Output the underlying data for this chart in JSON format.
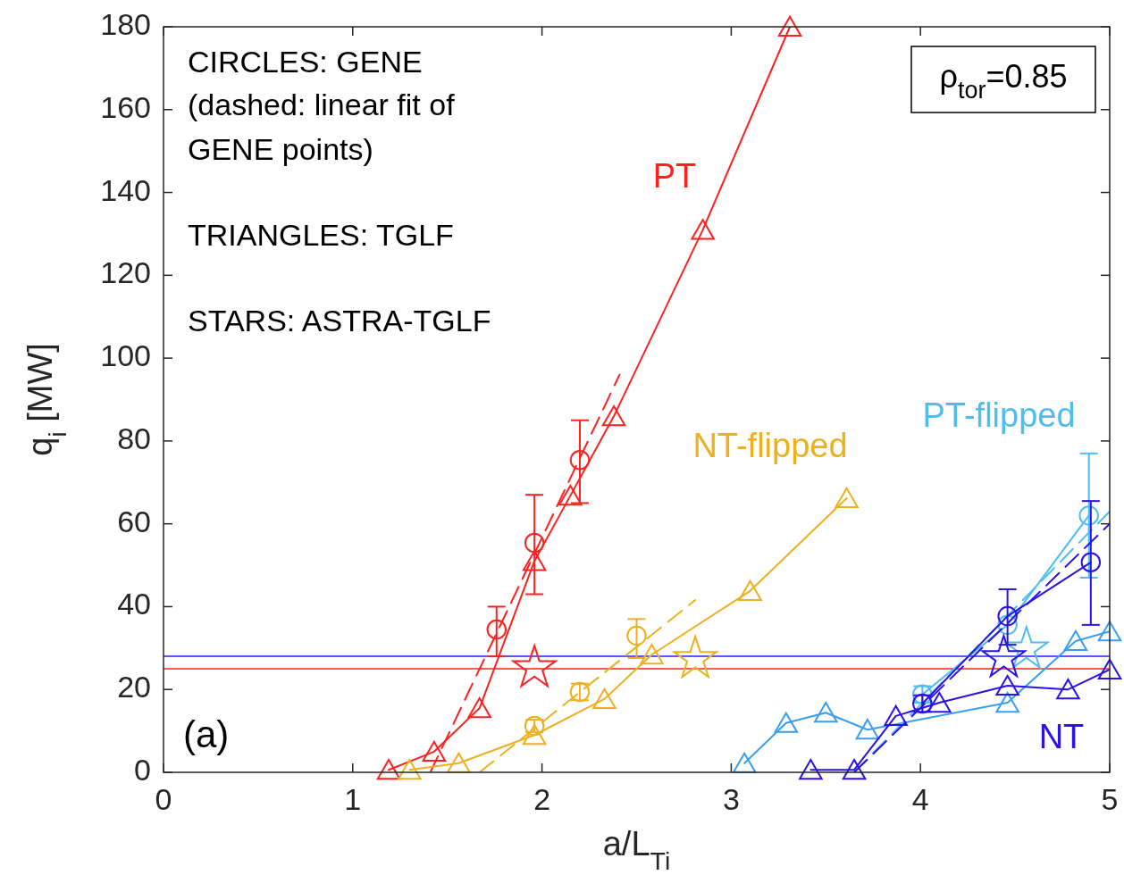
{
  "chart_data": {
    "type": "line",
    "xlabel": "a/L$_{Ti}$",
    "ylabel": "q$_{i}$ [MW]",
    "xlim": [
      0,
      5
    ],
    "xticks": [
      0,
      1,
      2,
      3,
      4,
      5
    ],
    "ylim": [
      0,
      180
    ],
    "yticks": [
      0,
      20,
      40,
      60,
      80,
      100,
      120,
      140,
      160,
      180
    ],
    "grid": false,
    "legend": false,
    "ref_lines": [
      {
        "axis": "y",
        "value": 28,
        "color": "#2222ff"
      },
      {
        "axis": "y",
        "value": 25,
        "color": "#ff2020"
      }
    ],
    "annotations": [
      "CIRCLES: GENE",
      "(dashed: linear fit of",
      "GENE points)",
      "TRIANGLES: TGLF",
      "STARS: ASTRA-TGLF",
      "ρ$_{tor}$=0.85",
      "(a)"
    ],
    "series": [
      {
        "name": "PT",
        "color": "#ff2020",
        "marker": "triangle",
        "line_style": "solid",
        "x": [
          1.19,
          1.43,
          1.67,
          1.96,
          2.15,
          2.38,
          2.85,
          3.31
        ],
        "values": [
          0.6,
          5,
          15.5,
          51,
          66.8,
          86,
          131,
          180
        ]
      },
      {
        "type": "scatter",
        "color": "#ff2020",
        "marker": "circle",
        "x": [
          1.76,
          1.96,
          2.2
        ],
        "values": [
          34.5,
          55.4,
          75.4
        ],
        "errors": [
          [
            28,
            40
          ],
          [
            43,
            67
          ],
          [
            65,
            85
          ]
        ]
      },
      {
        "color": "#ff2020",
        "line_style": "dashed",
        "x": [
          1.41,
          2.41
        ],
        "values": [
          0,
          96
        ]
      },
      {
        "type": "scatter",
        "color": "#ff2020",
        "marker": "star",
        "x": [
          1.96
        ],
        "values": [
          25.2
        ]
      },
      {
        "name": "NT-flipped",
        "color": "#edb120",
        "marker": "triangle",
        "line_style": "solid",
        "x": [
          1.3,
          1.56,
          1.96,
          2.33,
          2.58,
          3.1,
          3.61
        ],
        "values": [
          0.6,
          2.2,
          9,
          17.7,
          28.4,
          43.8,
          66.2
        ]
      },
      {
        "type": "scatter",
        "color": "#edb120",
        "marker": "circle",
        "x": [
          1.96,
          2.2,
          2.5
        ],
        "values": [
          11.2,
          19.4,
          33
        ],
        "errors": [
          1.5,
          2,
          [
            27.6,
            37
          ]
        ]
      },
      {
        "color": "#edb120",
        "line_style": "dashed",
        "x": [
          1.67,
          2.81
        ],
        "values": [
          0,
          41.6
        ]
      },
      {
        "type": "scatter",
        "color": "#edb120",
        "marker": "star",
        "x": [
          2.81
        ],
        "values": [
          27.4
        ]
      },
      {
        "color": "#3a9ef0",
        "marker": "triangle",
        "line_style": "solid",
        "x": [
          3.07,
          3.29,
          3.5,
          3.72,
          4.46,
          4.82,
          5
        ],
        "values": [
          2.2,
          11.9,
          14.4,
          10.3,
          16.8,
          31.7,
          34
        ]
      },
      {
        "name": "PT-flipped",
        "color": "#4dbeee",
        "marker": "circle",
        "line_style": "solid",
        "x": [
          4.01,
          4.46,
          4.89
        ],
        "values": [
          18.8,
          35.6,
          62
        ],
        "errors": [
          2,
          null,
          [
            47,
            77
          ]
        ]
      },
      {
        "color": "#4dbeee",
        "line_style": "dashed",
        "x": [
          3.65,
          5
        ],
        "values": [
          0,
          63
        ]
      },
      {
        "type": "scatter",
        "color": "#4dbeee",
        "marker": "star",
        "x": [
          4.56
        ],
        "values": [
          29.7
        ]
      },
      {
        "name": "NT",
        "color": "#2b12e6",
        "marker": "triangle",
        "line_style": "solid",
        "x": [
          3.42,
          3.65,
          3.87,
          4.1,
          4.46,
          4.78,
          5
        ],
        "values": [
          0.6,
          0.6,
          13.6,
          16.8,
          20.9,
          20,
          24.8
        ]
      },
      {
        "color": "#2b12e6",
        "marker": "circle",
        "line_style": "solid",
        "x": [
          4.01,
          4.46,
          4.9
        ],
        "values": [
          16.6,
          37.7,
          50.7
        ],
        "errors": [
          2,
          [
            30.8,
            44.2
          ],
          [
            35.6,
            65.5
          ]
        ]
      },
      {
        "color": "#2b12e6",
        "line_style": "dashed",
        "x": [
          3.65,
          5
        ],
        "values": [
          0,
          60
        ]
      },
      {
        "type": "scatter",
        "color": "#2b12e6",
        "marker": "star",
        "x": [
          4.44
        ],
        "values": [
          27.6
        ]
      }
    ]
  }
}
